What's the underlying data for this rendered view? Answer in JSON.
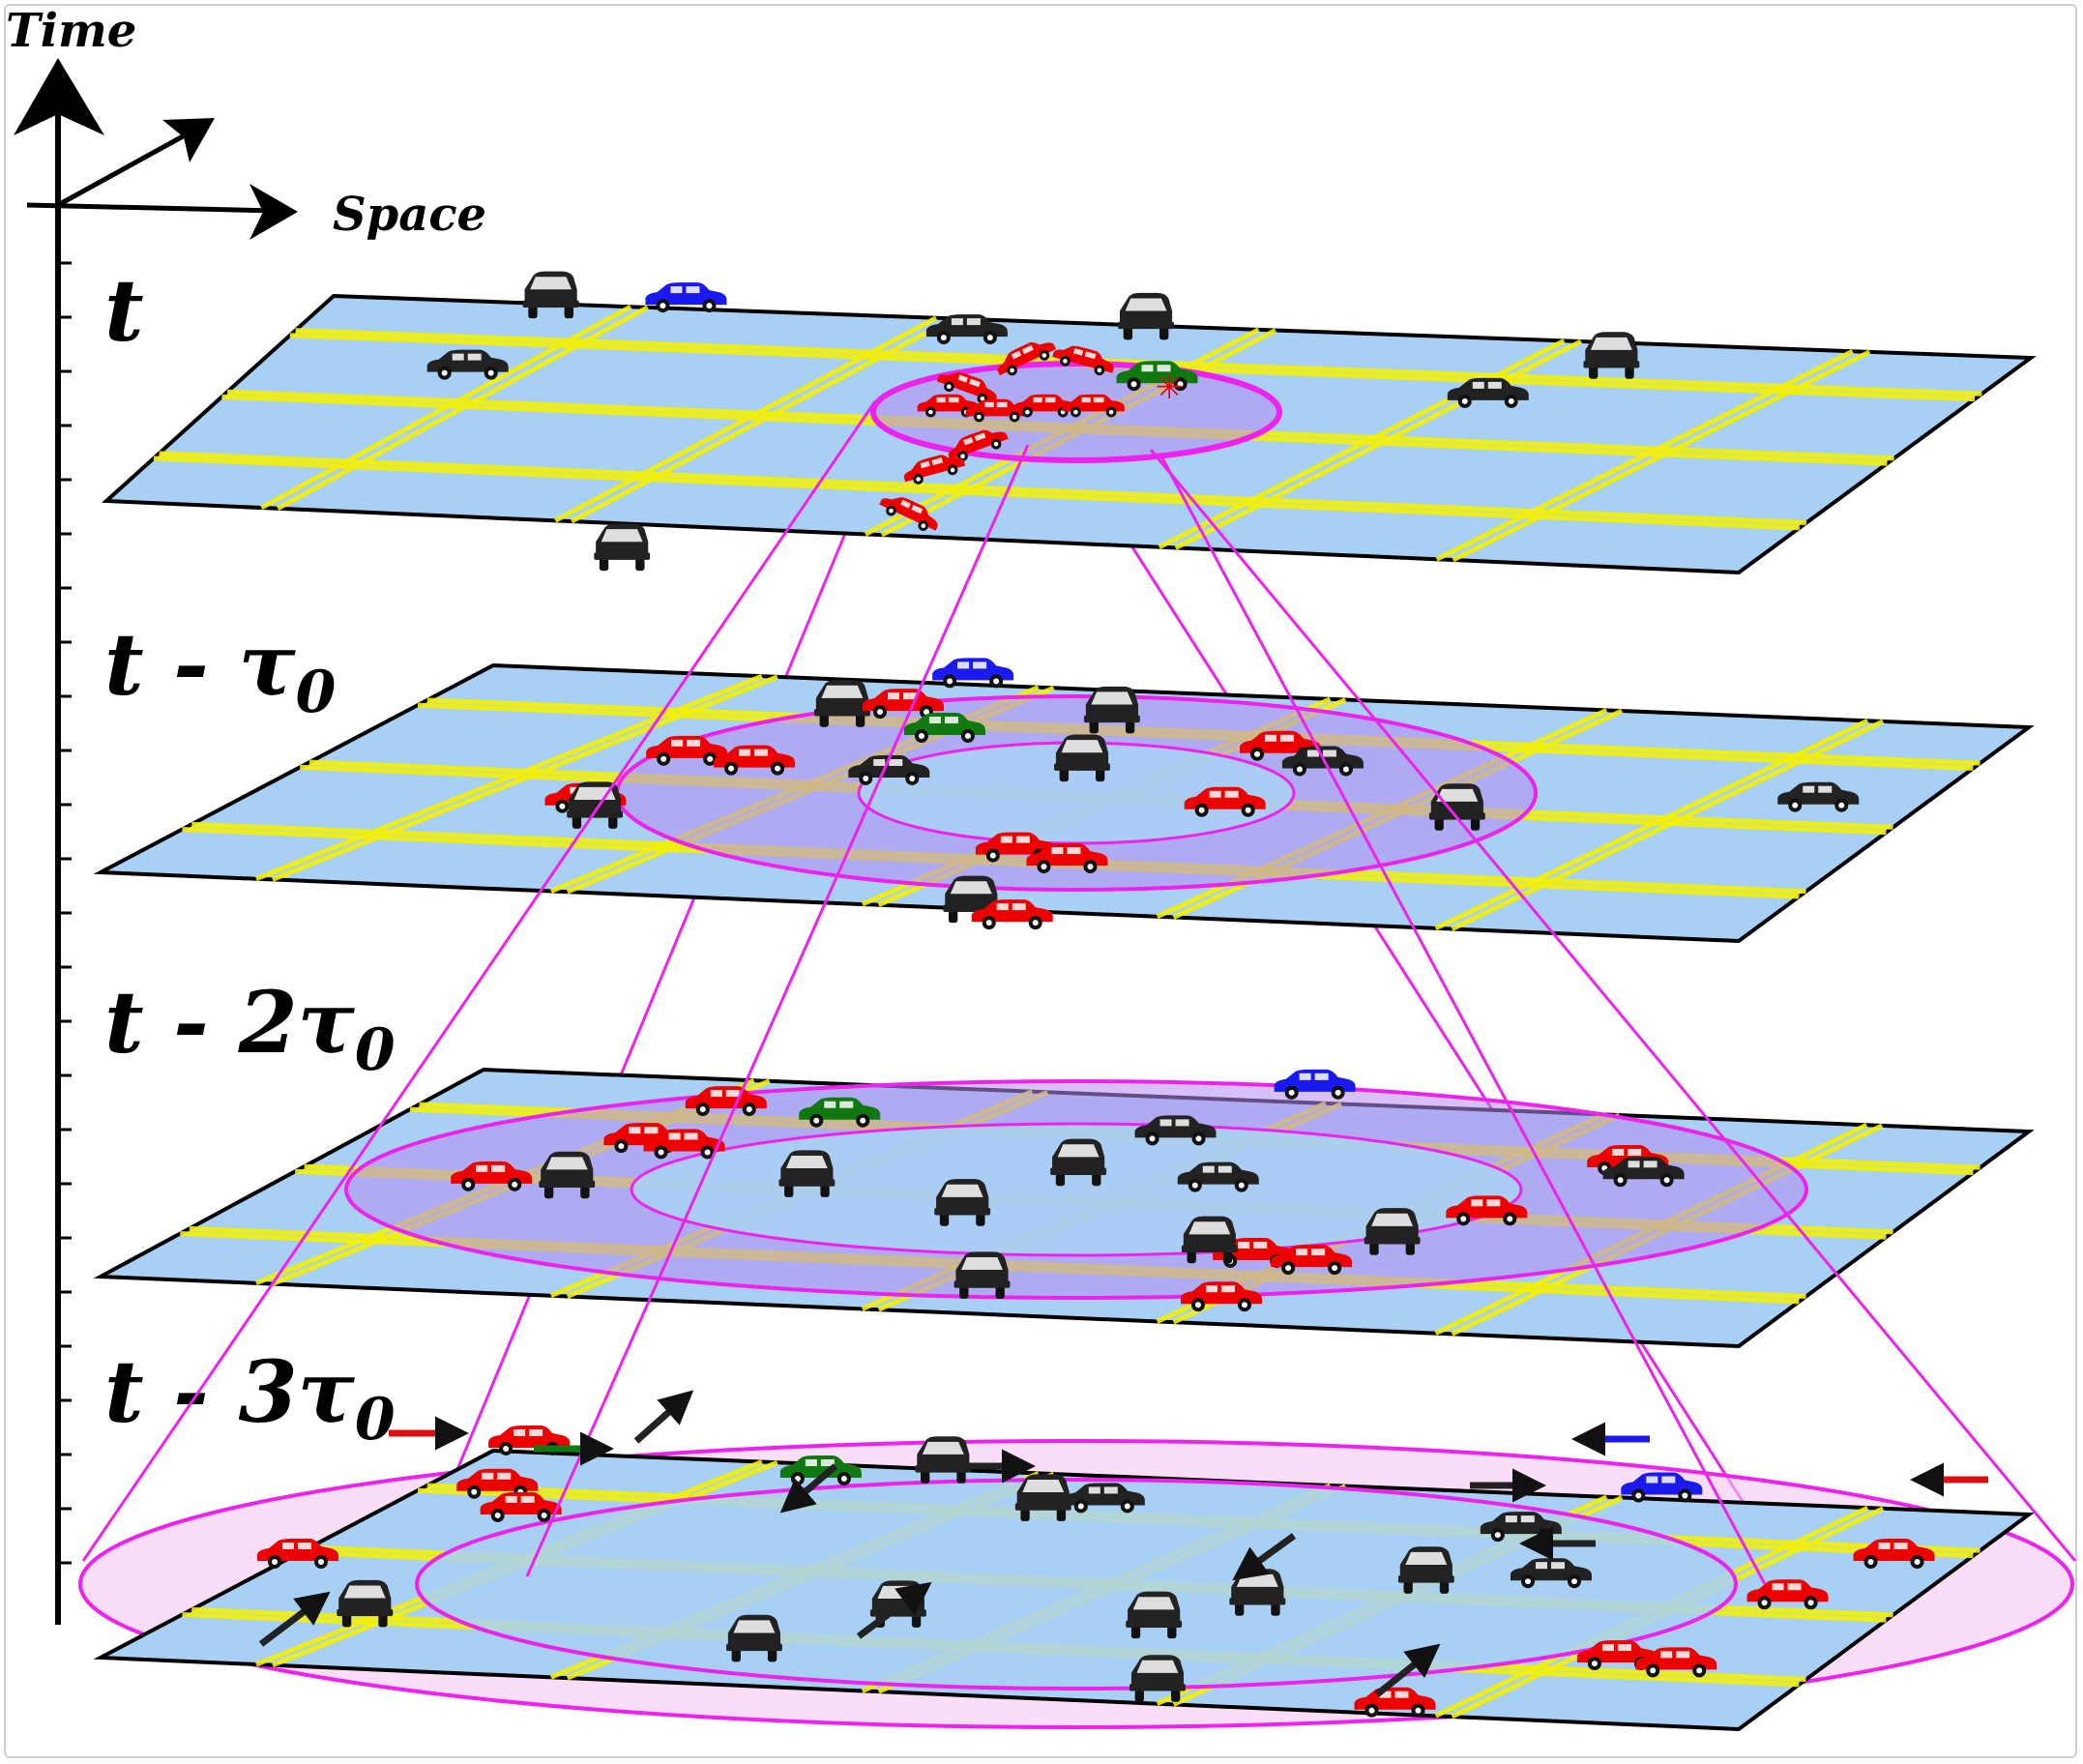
{
  "axes": {
    "time_label": "Time",
    "space_label": "Space"
  },
  "layers": [
    {
      "id": "t",
      "label": "t",
      "subscript": ""
    },
    {
      "id": "t1",
      "label": "t - τ",
      "subscript": "0"
    },
    {
      "id": "t2",
      "label": "t - 2τ",
      "subscript": "0"
    },
    {
      "id": "t3",
      "label": "t - 3τ",
      "subscript": "0"
    }
  ],
  "colors": {
    "plane_fill": "#a8d0f5",
    "plane_edge": "#000000",
    "road": "#f4f000",
    "region_fill": "#b58cf0",
    "region_outer_fill": "#f7c8f2",
    "region_stroke": "#ee22ee",
    "car_congested": "#ee0000",
    "car_normal": "#222222",
    "car_green": "#117711",
    "car_blue": "#1a1aee"
  },
  "icons": {
    "car": "car-icon",
    "crash": "crash-icon",
    "arrow": "arrow-icon"
  }
}
